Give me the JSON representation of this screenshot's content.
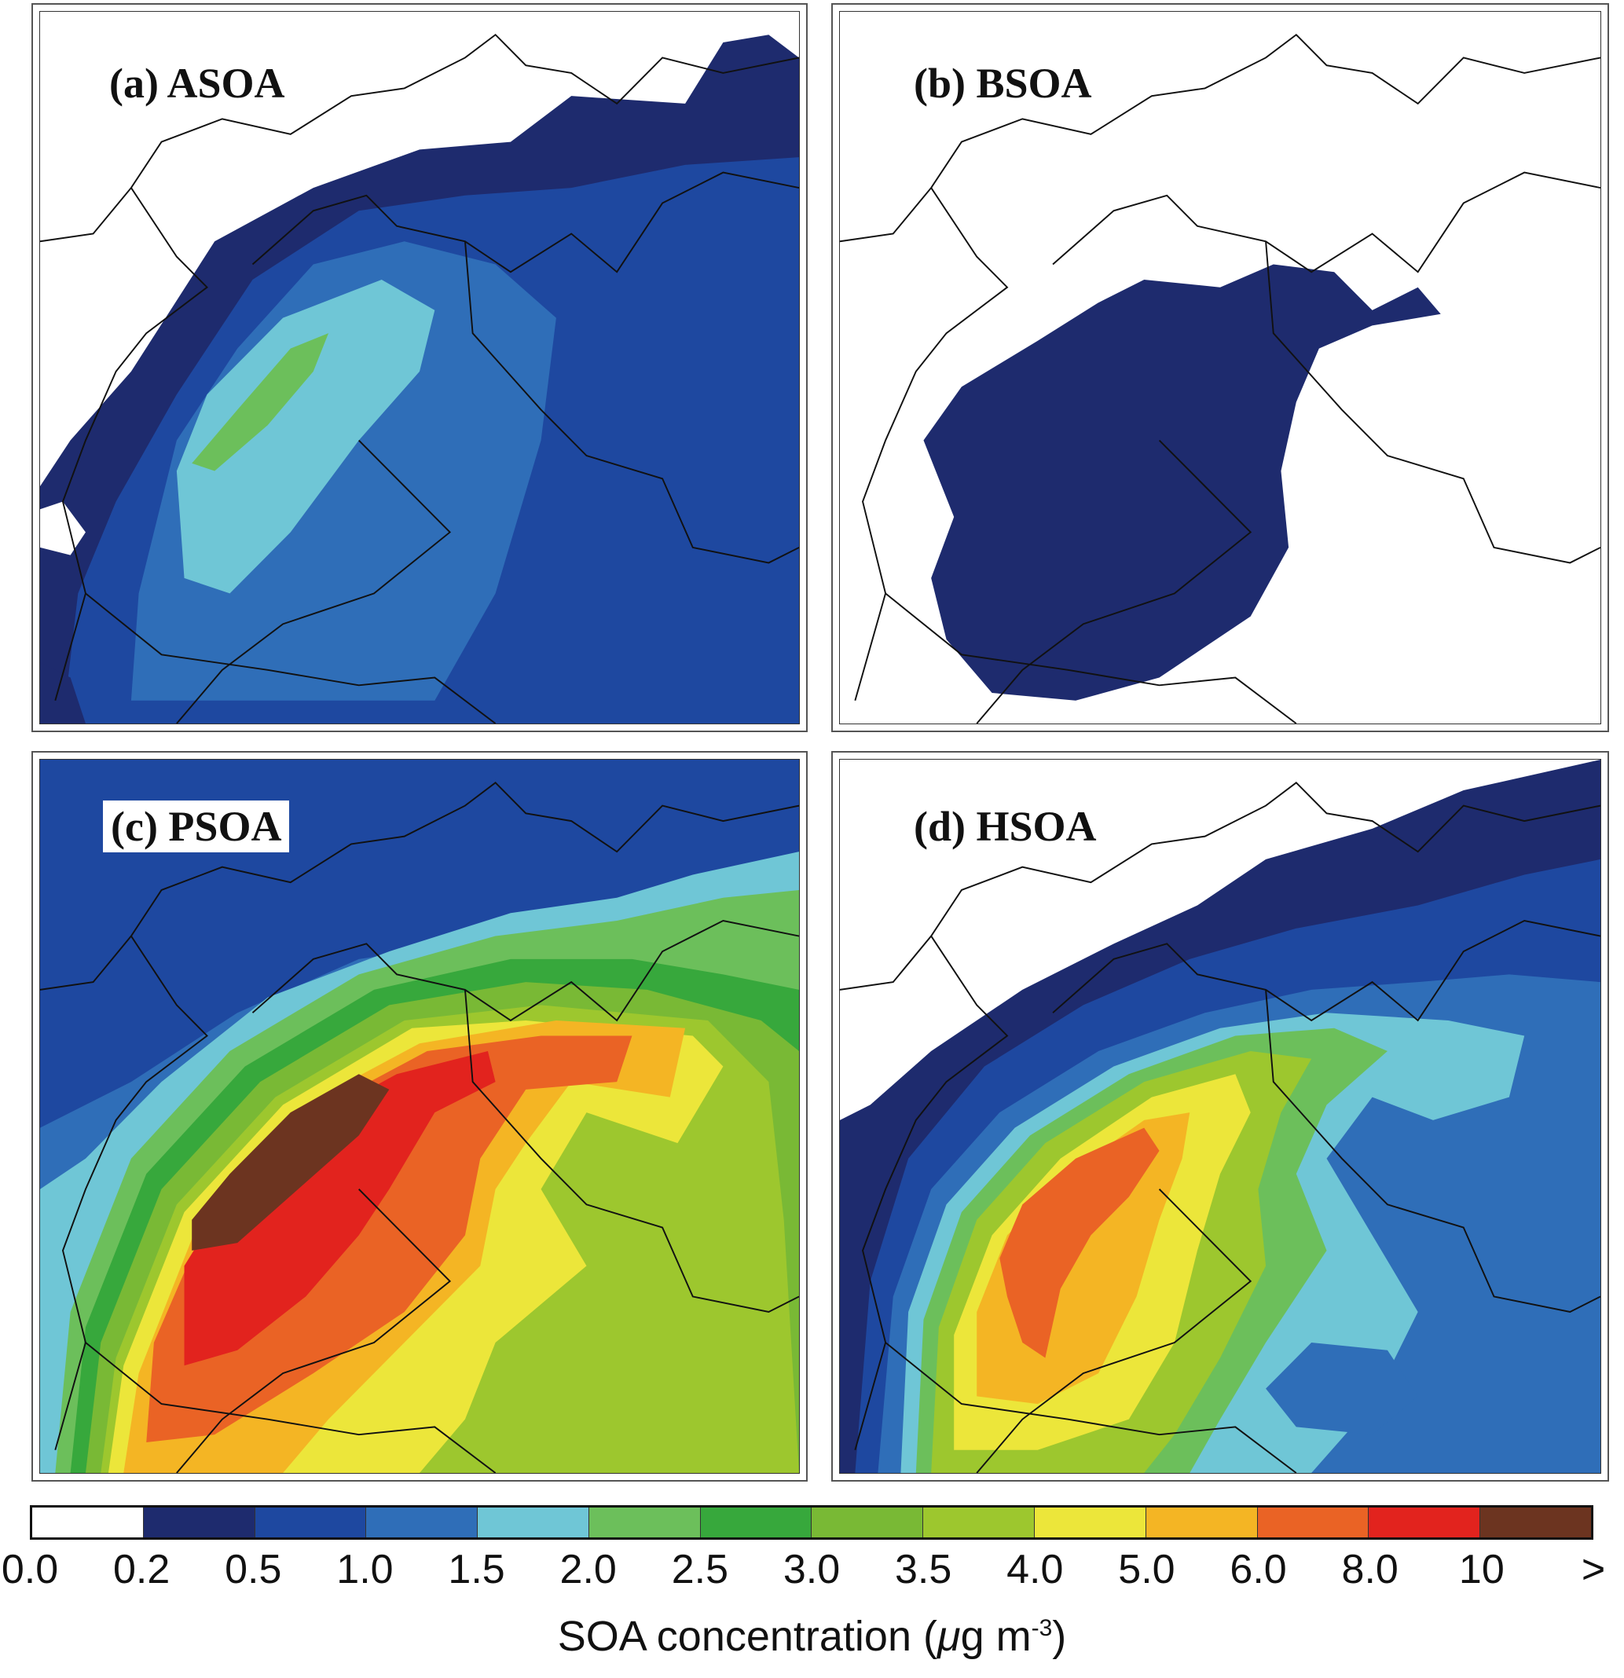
{
  "panels": [
    {
      "id": "a",
      "label": "(a) ASOA"
    },
    {
      "id": "b",
      "label": "(b) BSOA"
    },
    {
      "id": "c",
      "label": "(c) PSOA"
    },
    {
      "id": "d",
      "label": "(d) HSOA"
    }
  ],
  "colorbar": {
    "colors": [
      "#ffffff",
      "#1e2b6e",
      "#1e48a0",
      "#2f6eb8",
      "#6fc6d6",
      "#6cbf5b",
      "#37a83c",
      "#79b935",
      "#9dc72e",
      "#ece63a",
      "#f4b524",
      "#ea6325",
      "#e2231e",
      "#6c3420"
    ],
    "tick_labels": [
      "0.0",
      "0.2",
      "0.5",
      "1.0",
      "1.5",
      "2.0",
      "2.5",
      "3.0",
      "3.5",
      "4.0",
      "5.0",
      "6.0",
      "8.0",
      "10",
      ">"
    ],
    "title_main": "SOA concentration (",
    "title_mu": "μ",
    "title_unit": "g m",
    "title_exp": "-3",
    "title_close": ")"
  }
}
